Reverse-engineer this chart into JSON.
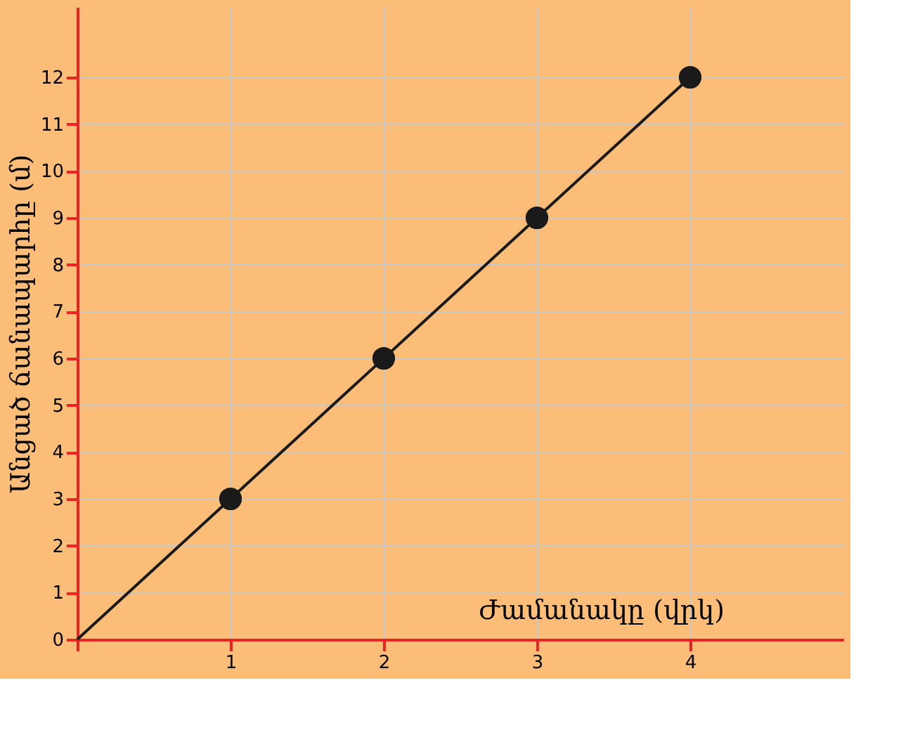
{
  "chart_data": {
    "type": "line",
    "xlabel": "Ժամանակը (վրկ)",
    "ylabel": "Անցած ճանապարհը (մ)",
    "xlim": [
      0,
      5
    ],
    "ylim": [
      0,
      13.5
    ],
    "xticks": [
      {
        "value": 0,
        "label": null
      },
      1,
      2,
      3,
      4
    ],
    "yticks": [
      0,
      1,
      2,
      3,
      4,
      5,
      6,
      7,
      8,
      9,
      10,
      11,
      12
    ],
    "grid": true,
    "series": [
      {
        "x": [
          0,
          1,
          2,
          3,
          4
        ],
        "values": [
          0,
          3,
          6,
          9,
          12
        ],
        "color": "#1a1a1a",
        "marker": "none",
        "line_style": "solid"
      },
      {
        "type": "scatter",
        "x": [
          1,
          2,
          3,
          4
        ],
        "values": [
          3,
          6,
          9,
          12
        ],
        "color": "#1a1a1a",
        "marker": "circle"
      }
    ]
  }
}
